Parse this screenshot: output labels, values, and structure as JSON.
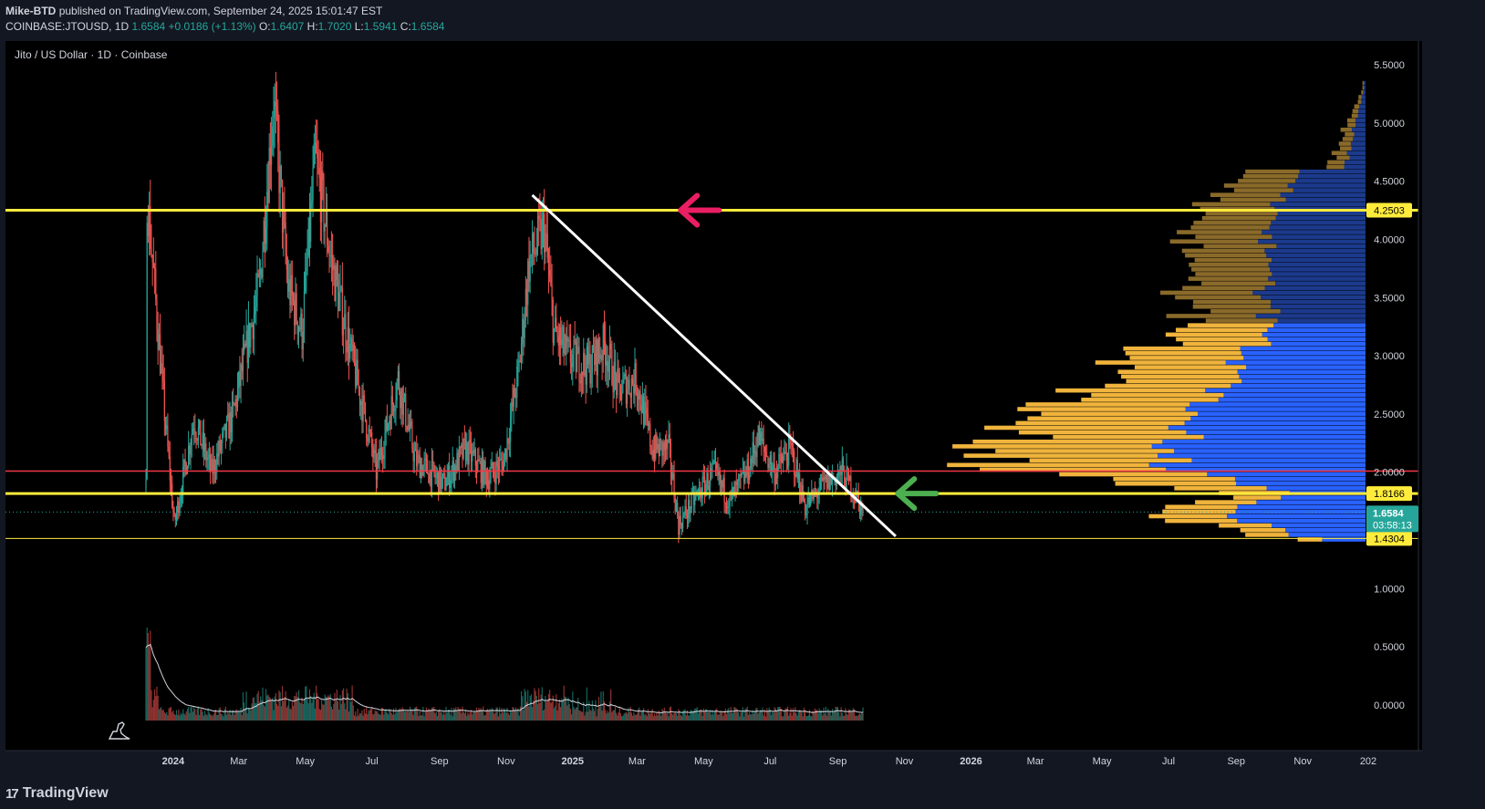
{
  "header": {
    "author": "Mike-BTD",
    "published": "published on TradingView.com, September 24, 2025 15:01:47 EST",
    "symbol": "COINBASE:JTOUSD, 1D",
    "last": "1.6584",
    "change": "+0.0186 (+1.13%)",
    "o_label": "O:",
    "o": "1.6407",
    "h_label": "H:",
    "h": "1.7020",
    "l_label": "L:",
    "l": "1.5941",
    "c_label": "C:",
    "c": "1.6584"
  },
  "footer": {
    "brand": "TradingView",
    "logo": "17"
  },
  "colors": {
    "background": "#000000",
    "frame": "#131722",
    "up": "#26a69a",
    "down": "#ef5350",
    "level": "#ffeb3b",
    "poc": "#f23645",
    "trendline": "#ffffff",
    "profile_up": "#f0b43c",
    "profile_down": "#2962ff",
    "arrow_top": "#e91e63",
    "arrow_bottom": "#4caf50"
  },
  "chart_data": {
    "type": "candlestick",
    "title": "Jito / US Dollar · 1D · Coinbase",
    "x_start": "2023-12-07",
    "x_end": "2026-12-31",
    "x_ticks": [
      {
        "date": "2024-01-01",
        "label": "2024",
        "bold": true
      },
      {
        "date": "2024-03-01",
        "label": "Mar"
      },
      {
        "date": "2024-05-01",
        "label": "May"
      },
      {
        "date": "2024-07-01",
        "label": "Jul"
      },
      {
        "date": "2024-09-01",
        "label": "Sep"
      },
      {
        "date": "2024-11-01",
        "label": "Nov"
      },
      {
        "date": "2025-01-01",
        "label": "2025",
        "bold": true
      },
      {
        "date": "2025-03-01",
        "label": "Mar"
      },
      {
        "date": "2025-05-01",
        "label": "May"
      },
      {
        "date": "2025-07-01",
        "label": "Jul"
      },
      {
        "date": "2025-09-01",
        "label": "Sep"
      },
      {
        "date": "2025-11-01",
        "label": "Nov"
      },
      {
        "date": "2026-01-01",
        "label": "2026",
        "bold": true
      },
      {
        "date": "2026-03-01",
        "label": "Mar"
      },
      {
        "date": "2026-05-01",
        "label": "May"
      },
      {
        "date": "2026-07-01",
        "label": "Jul"
      },
      {
        "date": "2026-09-01",
        "label": "Sep"
      },
      {
        "date": "2026-11-01",
        "label": "Nov"
      },
      {
        "date": "2026-12-31",
        "label": "202"
      }
    ],
    "y_ticks": [
      "5.5000",
      "5.0000",
      "4.5000",
      "4.0000",
      "3.5000",
      "3.0000",
      "2.5000",
      "2.0000",
      "1.0000",
      "0.5000",
      "0.0000"
    ],
    "ylim": [
      -0.1,
      5.6
    ],
    "levels": [
      {
        "name": "resistance",
        "value": 4.2503,
        "label": "4.2503",
        "style": "thick"
      },
      {
        "name": "support",
        "value": 1.8166,
        "label": "1.8166",
        "style": "thick"
      },
      {
        "name": "low",
        "value": 1.4304,
        "label": "1.4304",
        "style": "thin"
      },
      {
        "name": "poc",
        "value": 2.01,
        "label": "",
        "style": "red"
      }
    ],
    "current_price": {
      "value": 1.6584,
      "label": "1.6584",
      "countdown": "03:58:13"
    },
    "trendline": {
      "start": {
        "date": "2024-11-25",
        "price": 4.38
      },
      "end": {
        "date": "2025-10-24",
        "price": 1.45
      }
    },
    "arrows": [
      {
        "name": "red-arrow",
        "date": "2025-04-10",
        "price": 4.2503,
        "color": "#e91e63"
      },
      {
        "name": "green-arrow",
        "date": "2025-10-26",
        "price": 1.8166,
        "color": "#4caf50"
      }
    ],
    "anchors": [
      {
        "date": "2023-12-07",
        "price": 1.85
      },
      {
        "date": "2023-12-08",
        "price": 4.4
      },
      {
        "date": "2023-12-25",
        "price": 2.4
      },
      {
        "date": "2024-01-02",
        "price": 1.55
      },
      {
        "date": "2024-01-20",
        "price": 2.45
      },
      {
        "date": "2024-02-05",
        "price": 2.0
      },
      {
        "date": "2024-02-25",
        "price": 2.5
      },
      {
        "date": "2024-03-20",
        "price": 3.6
      },
      {
        "date": "2024-04-02",
        "price": 5.2
      },
      {
        "date": "2024-04-15",
        "price": 3.6
      },
      {
        "date": "2024-04-28",
        "price": 3.2
      },
      {
        "date": "2024-05-10",
        "price": 4.7
      },
      {
        "date": "2024-05-25",
        "price": 3.8
      },
      {
        "date": "2024-06-10",
        "price": 3.1
      },
      {
        "date": "2024-07-01",
        "price": 2.2
      },
      {
        "date": "2024-07-05",
        "price": 2.0
      },
      {
        "date": "2024-07-25",
        "price": 2.8
      },
      {
        "date": "2024-08-10",
        "price": 2.1
      },
      {
        "date": "2024-09-05",
        "price": 1.9
      },
      {
        "date": "2024-09-25",
        "price": 2.2
      },
      {
        "date": "2024-10-15",
        "price": 1.95
      },
      {
        "date": "2024-10-30",
        "price": 2.1
      },
      {
        "date": "2024-11-13",
        "price": 2.9
      },
      {
        "date": "2024-11-22",
        "price": 3.8
      },
      {
        "date": "2024-12-06",
        "price": 4.1
      },
      {
        "date": "2024-12-15",
        "price": 3.2
      },
      {
        "date": "2024-12-28",
        "price": 3.0
      },
      {
        "date": "2025-01-15",
        "price": 2.9
      },
      {
        "date": "2025-01-30",
        "price": 3.1
      },
      {
        "date": "2025-02-12",
        "price": 2.7
      },
      {
        "date": "2025-02-28",
        "price": 2.8
      },
      {
        "date": "2025-03-15",
        "price": 2.2
      },
      {
        "date": "2025-03-30",
        "price": 2.2
      },
      {
        "date": "2025-04-08",
        "price": 1.55
      },
      {
        "date": "2025-04-25",
        "price": 1.8
      },
      {
        "date": "2025-05-10",
        "price": 2.0
      },
      {
        "date": "2025-05-25",
        "price": 1.75
      },
      {
        "date": "2025-06-10",
        "price": 2.0
      },
      {
        "date": "2025-06-20",
        "price": 2.3
      },
      {
        "date": "2025-07-05",
        "price": 2.0
      },
      {
        "date": "2025-07-20",
        "price": 2.2
      },
      {
        "date": "2025-08-02",
        "price": 1.7
      },
      {
        "date": "2025-08-20",
        "price": 1.9
      },
      {
        "date": "2025-09-05",
        "price": 2.0
      },
      {
        "date": "2025-09-15",
        "price": 1.85
      },
      {
        "date": "2025-09-24",
        "price": 1.66
      }
    ],
    "volume_profile": {
      "bin_size": 0.04,
      "rows": [
        {
          "from": 1.4,
          "to": 1.8,
          "peak": 1.62,
          "up": 90,
          "down": 160
        },
        {
          "from": 1.8,
          "to": 3.26,
          "peak": 2.03,
          "up": 210,
          "down": 225
        },
        {
          "from": 3.26,
          "to": 5.33,
          "peak": 3.6,
          "up": 90,
          "down": 110
        }
      ]
    }
  }
}
